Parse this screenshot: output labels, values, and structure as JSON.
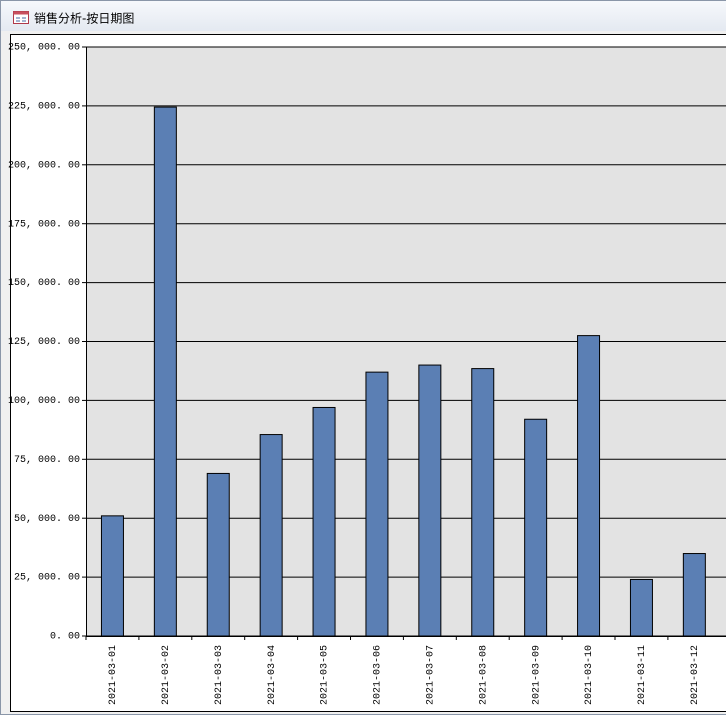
{
  "window_title": "销售分析-按日期图",
  "chart_data": {
    "type": "bar",
    "categories": [
      "2021-03-01",
      "2021-03-02",
      "2021-03-03",
      "2021-03-04",
      "2021-03-05",
      "2021-03-06",
      "2021-03-07",
      "2021-03-08",
      "2021-03-09",
      "2021-03-10",
      "2021-03-11",
      "2021-03-12"
    ],
    "values": [
      51000,
      224500,
      69000,
      85500,
      97000,
      112000,
      115000,
      113500,
      92000,
      127500,
      24000,
      35000
    ],
    "color": "#5b7fb4",
    "ylim": [
      0,
      250000
    ],
    "yticks": [
      {
        "value": 0,
        "label": "0. 00"
      },
      {
        "value": 25000,
        "label": "25, 000. 00"
      },
      {
        "value": 50000,
        "label": "50, 000. 00"
      },
      {
        "value": 75000,
        "label": "75, 000. 00"
      },
      {
        "value": 100000,
        "label": "100, 000. 00"
      },
      {
        "value": 125000,
        "label": "125, 000. 00"
      },
      {
        "value": 150000,
        "label": "150, 000. 00"
      },
      {
        "value": 175000,
        "label": "175, 000. 00"
      },
      {
        "value": 200000,
        "label": "200, 000. 00"
      },
      {
        "value": 225000,
        "label": "225, 000. 00"
      },
      {
        "value": 250000,
        "label": "250, 000. 00"
      }
    ],
    "grid": true
  }
}
